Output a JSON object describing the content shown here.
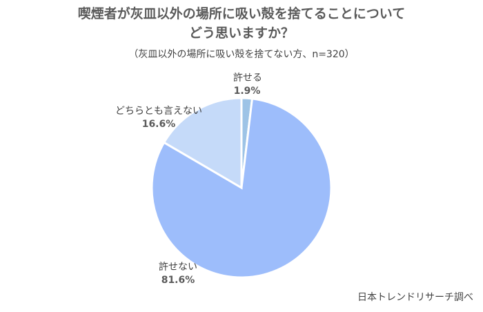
{
  "chart_data": {
    "type": "pie",
    "title_lines": [
      "喫煙者が灰皿以外の場所に吸い殻を捨てることについて",
      "どう思いますか？"
    ],
    "subtitle": "（灰皿以外の場所に吸い殻を捨てない方、n=320）",
    "slices": [
      {
        "label": "許せる",
        "value": 1.9,
        "value_label": "1.9%",
        "color": "#9dc3e6"
      },
      {
        "label": "許せない",
        "value": 81.6,
        "value_label": "81.6%",
        "color": "#9dbdfb"
      },
      {
        "label": "どちらとも言えない",
        "value": 16.6,
        "value_label": "16.6%",
        "color": "#c5daf9"
      }
    ],
    "start_angle_deg": 0,
    "direction": "clockwise",
    "source": "日本トレンドリサーチ調べ"
  }
}
